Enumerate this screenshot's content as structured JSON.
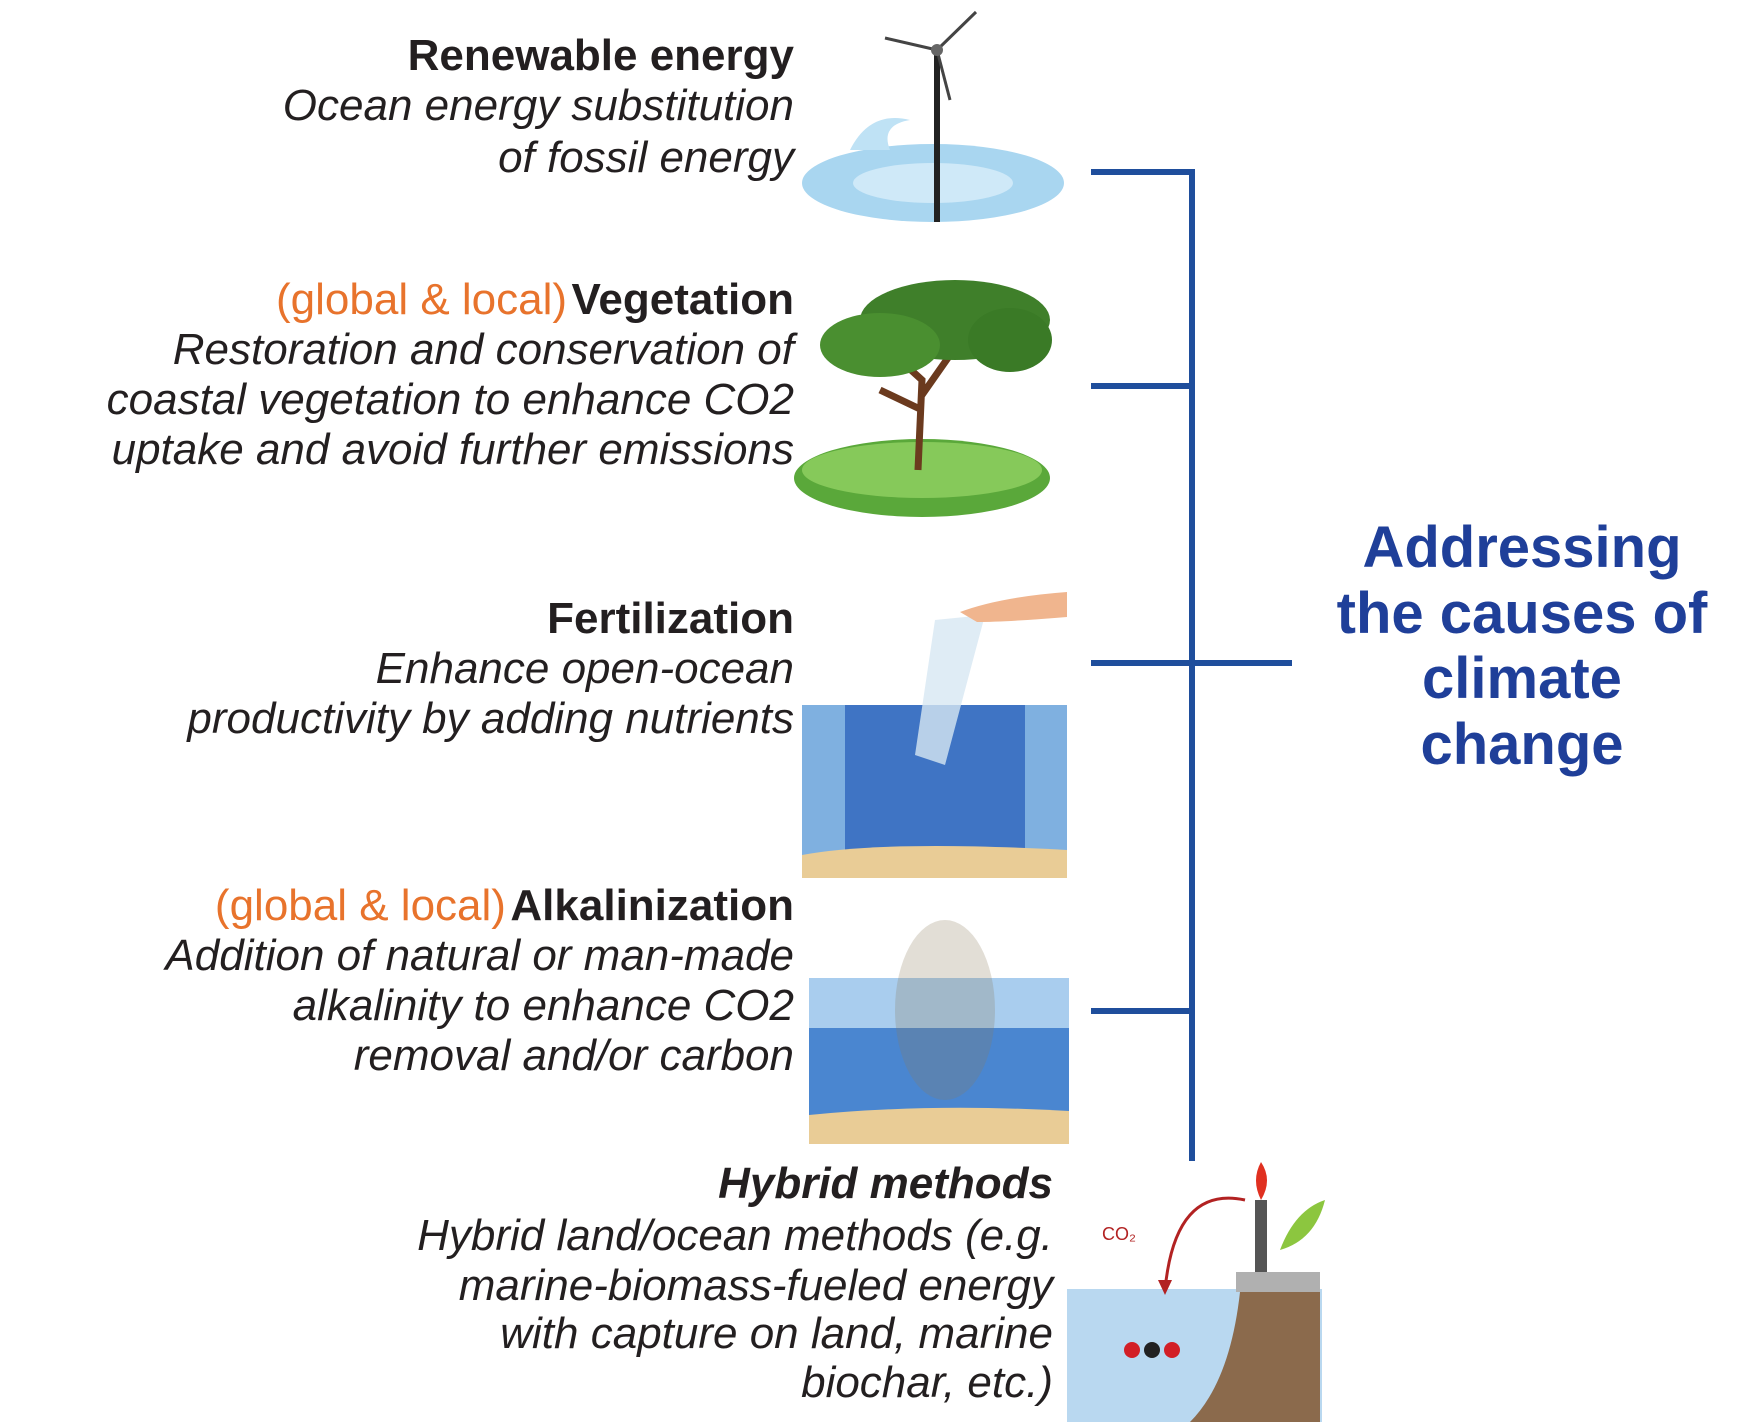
{
  "blocks": [
    {
      "title": "Renewable energy",
      "lines": [
        "Ocean energy substitution",
        "of fossil energy"
      ]
    },
    {
      "tag": "(global & local)",
      "title": "Vegetation",
      "lines": [
        "Restoration and conservation of",
        "coastal vegetation to enhance CO2",
        "uptake and avoid further emissions"
      ]
    },
    {
      "title": "Fertilization",
      "lines": [
        "Enhance open-ocean",
        "productivity by adding nutrients"
      ]
    },
    {
      "tag": "(global & local)",
      "title": "Alkalinization",
      "lines": [
        "Addition of natural or man-made",
        "alkalinity to enhance CO2",
        "removal and/or carbon"
      ]
    },
    {
      "title": "Hybrid methods",
      "lines": [
        "Hybrid land/ocean methods (e.g.",
        "marine-biomass-fueled energy",
        "with capture on land, marine",
        "biochar, etc.)"
      ]
    }
  ],
  "side_label": [
    "Addressing",
    "the causes of",
    "climate",
    "change"
  ],
  "co2_label": "CO₂"
}
